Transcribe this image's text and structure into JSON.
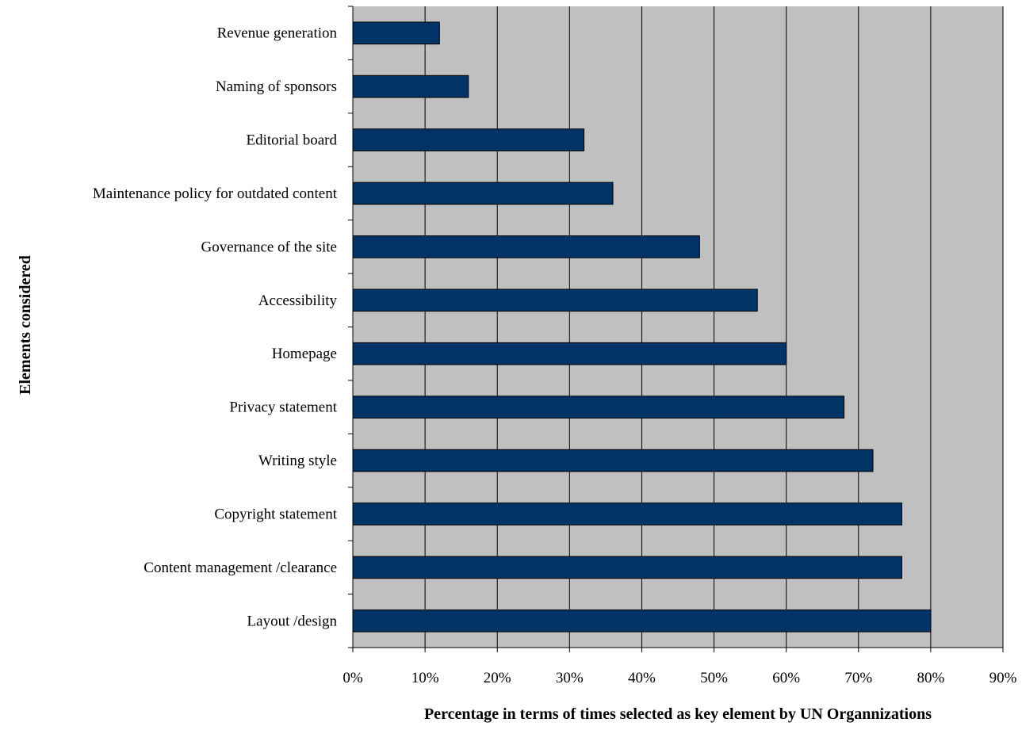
{
  "chart_data": {
    "type": "bar",
    "orientation": "horizontal",
    "title": "",
    "xlabel": "Percentage in terms of times selected as key element by UN Organnizations",
    "ylabel": "Elements considered",
    "categories": [
      "Revenue generation",
      "Naming of sponsors",
      "Editorial board",
      "Maintenance policy for outdated content",
      "Governance of the site",
      "Accessibility",
      "Homepage",
      "Privacy statement",
      "Writing style",
      "Copyright statement",
      "Content management /clearance",
      "Layout /design"
    ],
    "values": [
      0.12,
      0.16,
      0.32,
      0.36,
      0.48,
      0.56,
      0.6,
      0.68,
      0.72,
      0.76,
      0.76,
      0.8
    ],
    "xlim": [
      0,
      0.9
    ],
    "xticks": [
      "0%",
      "10%",
      "20%",
      "30%",
      "40%",
      "50%",
      "60%",
      "70%",
      "80%",
      "90%"
    ],
    "grid": "vertical",
    "legend": "none",
    "colors": {
      "bar": "#003366",
      "plot_background": "#c0c0c0",
      "gridline": "#000000"
    }
  }
}
